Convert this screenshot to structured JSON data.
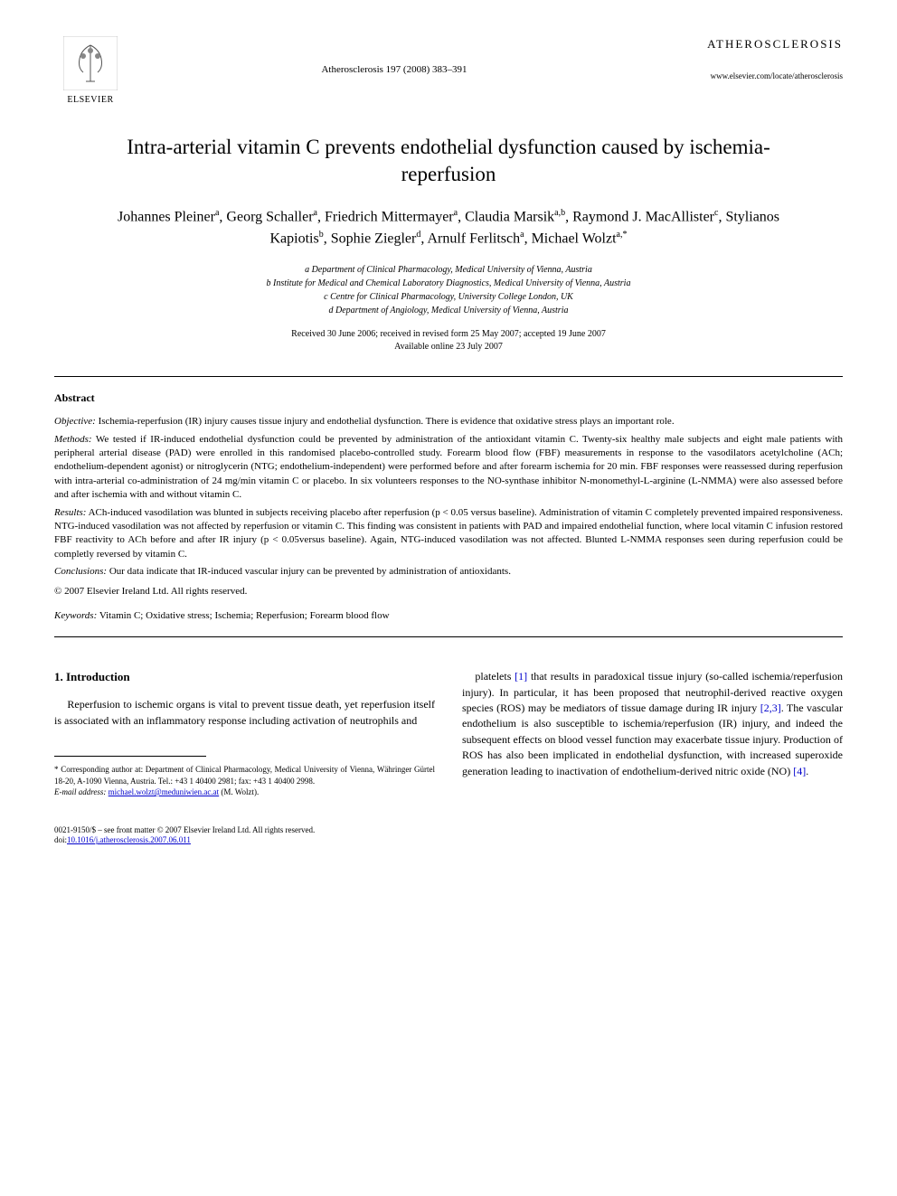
{
  "header": {
    "publisher": "ELSEVIER",
    "citation": "Atherosclerosis 197 (2008) 383–391",
    "journal_name": "ATHEROSCLEROSIS",
    "journal_url": "www.elsevier.com/locate/atherosclerosis"
  },
  "title": "Intra-arterial vitamin C prevents endothelial dysfunction caused by ischemia-reperfusion",
  "authors_html": "Johannes Pleiner<sup class=\"author-sup\">a</sup>, Georg Schaller<sup class=\"author-sup\">a</sup>, Friedrich Mittermayer<sup class=\"author-sup\">a</sup>, Claudia Marsik<sup class=\"author-sup\">a,b</sup>, Raymond J. MacAllister<sup class=\"author-sup\">c</sup>, Stylianos Kapiotis<sup class=\"author-sup\">b</sup>, Sophie Ziegler<sup class=\"author-sup\">d</sup>, Arnulf Ferlitsch<sup class=\"author-sup\">a</sup>, Michael Wolzt<sup class=\"author-sup\">a,*</sup>",
  "affiliations": [
    "a Department of Clinical Pharmacology, Medical University of Vienna, Austria",
    "b Institute for Medical and Chemical Laboratory Diagnostics, Medical University of Vienna, Austria",
    "c Centre for Clinical Pharmacology, University College London, UK",
    "d Department of Angiology, Medical University of Vienna, Austria"
  ],
  "dates": {
    "line1": "Received 30 June 2006; received in revised form 25 May 2007; accepted 19 June 2007",
    "line2": "Available online 23 July 2007"
  },
  "abstract": {
    "heading": "Abstract",
    "objective_label": "Objective:",
    "objective": "Ischemia-reperfusion (IR) injury causes tissue injury and endothelial dysfunction. There is evidence that oxidative stress plays an important role.",
    "methods_label": "Methods:",
    "methods": "We tested if IR-induced endothelial dysfunction could be prevented by administration of the antioxidant vitamin C. Twenty-six healthy male subjects and eight male patients with peripheral arterial disease (PAD) were enrolled in this randomised placebo-controlled study. Forearm blood flow (FBF) measurements in response to the vasodilators acetylcholine (ACh; endothelium-dependent agonist) or nitroglycerin (NTG; endothelium-independent) were performed before and after forearm ischemia for 20 min. FBF responses were reassessed during reperfusion with intra-arterial co-administration of 24 mg/min vitamin C or placebo. In six volunteers responses to the NO-synthase inhibitor N-monomethyl-L-arginine (L-NMMA) were also assessed before and after ischemia with and without vitamin C.",
    "results_label": "Results:",
    "results": "ACh-induced vasodilation was blunted in subjects receiving placebo after reperfusion (p < 0.05 versus baseline). Administration of vitamin C completely prevented impaired responsiveness. NTG-induced vasodilation was not affected by reperfusion or vitamin C. This finding was consistent in patients with PAD and impaired endothelial function, where local vitamin C infusion restored FBF reactivity to ACh before and after IR injury (p < 0.05versus baseline). Again, NTG-induced vasodilation was not affected. Blunted L-NMMA responses seen during reperfusion could be completly reversed by vitamin C.",
    "conclusions_label": "Conclusions:",
    "conclusions": "Our data indicate that IR-induced vascular injury can be prevented by administration of antioxidants.",
    "copyright": "© 2007 Elsevier Ireland Ltd. All rights reserved."
  },
  "keywords": {
    "label": "Keywords:",
    "text": "Vitamin C; Oxidative stress; Ischemia; Reperfusion; Forearm blood flow"
  },
  "body": {
    "section_number": "1.",
    "section_title": "Introduction",
    "col1_p1": "Reperfusion to ischemic organs is vital to prevent tissue death, yet reperfusion itself is associated with an inflammatory response including activation of neutrophils and",
    "col2_p1_html": "platelets <span class=\"ref-link\">[1]</span> that results in paradoxical tissue injury (so-called ischemia/reperfusion injury). In particular, it has been proposed that neutrophil-derived reactive oxygen species (ROS) may be mediators of tissue damage during IR injury <span class=\"ref-link\">[2,3]</span>. The vascular endothelium is also susceptible to ischemia/reperfusion (IR) injury, and indeed the subsequent effects on blood vessel function may exacerbate tissue injury. Production of ROS has also been implicated in endothelial dysfunction, with increased superoxide generation leading to inactivation of endothelium-derived nitric oxide (NO) <span class=\"ref-link\">[4]</span>."
  },
  "footnote": {
    "corresponding": "* Corresponding author at: Department of Clinical Pharmacology, Medical University of Vienna, Währinger Gürtel 18-20, A-1090 Vienna, Austria. Tel.: +43 1 40400 2981; fax: +43 1 40400 2998.",
    "email_label": "E-mail address:",
    "email": "michael.wolzt@meduniwien.ac.at",
    "email_suffix": "(M. Wolzt)."
  },
  "footer": {
    "line1": "0021-9150/$ – see front matter © 2007 Elsevier Ireland Ltd. All rights reserved.",
    "doi_label": "doi:",
    "doi": "10.1016/j.atherosclerosis.2007.06.011"
  },
  "colors": {
    "text": "#000000",
    "background": "#ffffff",
    "link": "#0000cc",
    "logo_orange": "#ff6600"
  }
}
